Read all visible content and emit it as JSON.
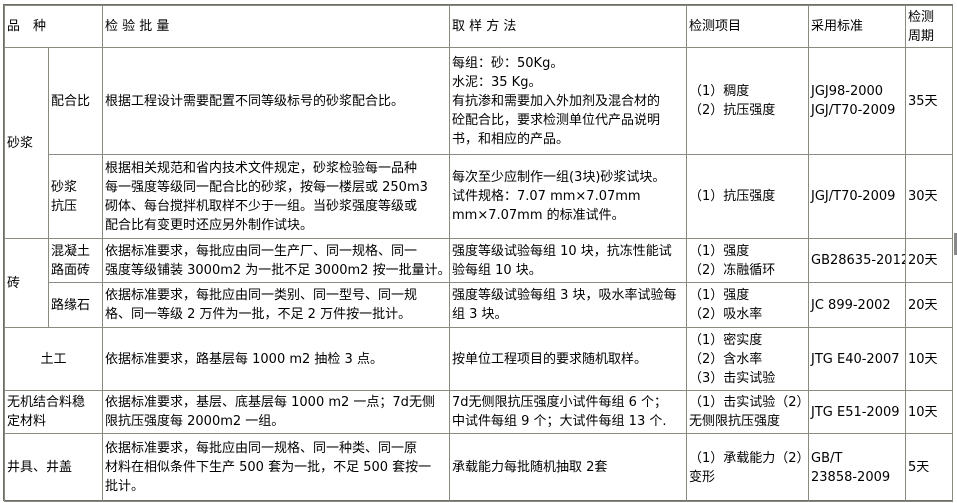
{
  "header": {
    "variety": [
      "品　种"
    ],
    "batch": [
      "检 验 批 量"
    ],
    "method": [
      "取 样 方 法"
    ],
    "items": [
      "检测项目"
    ],
    "standard": [
      "采用标准"
    ],
    "period": [
      "检测",
      "周期"
    ]
  },
  "groups": {
    "mortar": [
      "砂浆"
    ],
    "brick": [
      "砖"
    ]
  },
  "rows": [
    {
      "sub": [
        "配合比"
      ],
      "batch": [
        "根据工程设计需要配置不同等级标号的砂浆配合比。"
      ],
      "method": [
        "每组：砂：50Kg。",
        "水泥：35 Kg。",
        "有抗渗和需要加入外加剂及混合材的",
        "砼配合比，要求检测单位代产品说明",
        "书，和相应的产品。"
      ],
      "items": [
        "（1）稠度",
        "（2）抗压强度"
      ],
      "standard": [
        "JGJ98-2000",
        "JGJ/T70-2009"
      ],
      "period": [
        "35天"
      ]
    },
    {
      "sub": [
        "砂浆",
        "抗压"
      ],
      "batch": [
        "根据相关规范和省内技术文件规定，砂浆检验每一品种",
        "每一强度等级同一配合比的砂浆，按每一楼层或 250m3",
        "砌体、每台搅拌机取样不少于一组。当砂浆强度等级或",
        "配合比有变更时还应另外制作试块。"
      ],
      "method": [
        "每次至少应制作一组(3块)砂浆试块。",
        "试件规格：7.07 mm×7.07mm",
        "mm×7.07mm 的标准试件。"
      ],
      "items": [
        "（1）抗压强度"
      ],
      "standard": [
        "JGJ/T70-2009"
      ],
      "period": [
        "30天"
      ]
    },
    {
      "sub": [
        "混凝土",
        "路面砖"
      ],
      "batch": [
        "依据标准要求，每批应由同一生产厂、同一规格、同一",
        "强度等级铺装 3000m2 为一批不足 3000m2 按一批量计。"
      ],
      "method": [
        "强度等级试验每组 10 块，抗冻性能试",
        "验每组 10 块。"
      ],
      "items": [
        "（1）强度",
        "（2）冻融循环"
      ],
      "standard": [
        "GB28635-2012"
      ],
      "period": [
        "20天"
      ]
    },
    {
      "sub": [
        "路缘石"
      ],
      "batch": [
        "依据标准要求，每批应由同一类别、同一型号、同一规",
        "格、同一等级 2 万件为一批，不足 2 万件按一批计。"
      ],
      "method": [
        "强度等级试验每组 3 块，吸水率试验每",
        "组 3 块。"
      ],
      "items": [
        "（1）强度",
        "（2）吸水率"
      ],
      "standard": [
        "JC 899-2002"
      ],
      "period": [
        "20天"
      ]
    },
    {
      "name": [
        "土工"
      ],
      "batch": [
        "依据标准要求，路基层每 1000 m2 抽检 3 点。"
      ],
      "method": [
        "按单位工程项目的要求随机取样。"
      ],
      "items": [
        "（1）密实度",
        "（2）含水率",
        "（3）击实试验"
      ],
      "standard": [
        "JTG E40-2007"
      ],
      "period": [
        "10天"
      ]
    },
    {
      "name": [
        "无机结合料稳",
        "定材料"
      ],
      "batch": [
        "依据标准要求，基层、底基层每 1000 m2 一点；7d无侧",
        "限抗压强度每 2000m2 一组。"
      ],
      "method": [
        "7d无侧限抗压强度小试件每组 6 个；",
        "中试件每组 9 个；大试件每组 13 个."
      ],
      "items": [
        "（1）击实试验（2）",
        "无侧限抗压强度"
      ],
      "standard": [
        "JTG E51-2009"
      ],
      "period": [
        "10天"
      ]
    },
    {
      "name": [
        "井具、井盖"
      ],
      "batch": [
        "依据标准要求，每批应由同一规格、同一种类、同一原",
        "材料在相似条件下生产 500 套为一批，不足 500 套按一",
        "批计。"
      ],
      "method": [
        "承载能力每批随机抽取 2套"
      ],
      "items": [
        "（1）承载能力（2）",
        "变形"
      ],
      "standard": [
        "GB/T",
        "23858-2009"
      ],
      "period": [
        "5天"
      ]
    }
  ]
}
